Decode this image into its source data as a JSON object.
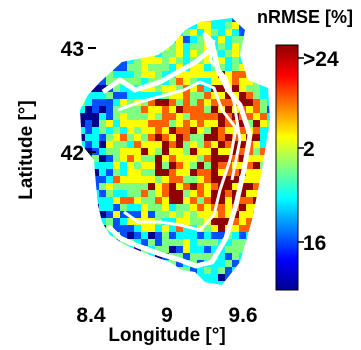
{
  "map": {
    "xlabel": "Longitude [°]",
    "ylabel": "Latitude [°]",
    "x_ticks": [
      "8.4",
      "9",
      "9.6"
    ],
    "y_ticks": [
      "43",
      "42"
    ],
    "x_tick_values": [
      8.4,
      9.0,
      9.6
    ],
    "y_tick_values": [
      43.0,
      42.0
    ],
    "x_range": [
      8.3,
      9.75
    ],
    "y_range": [
      41.3,
      43.05
    ],
    "grid": false
  },
  "colorbar": {
    "title": "nRMSE [%]",
    "labels": [
      ">24",
      "2",
      "16"
    ],
    "colormap": "jet",
    "colors": [
      "#00008f",
      "#0050ff",
      "#00ffff",
      "#7fff7f",
      "#ffff00",
      "#ff6000",
      "#8f0000"
    ]
  },
  "overlay": {
    "contour_color": "#ffffff"
  }
}
